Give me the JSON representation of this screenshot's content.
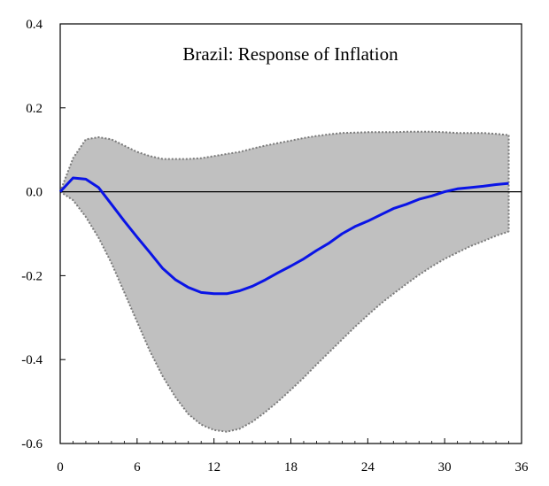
{
  "chart_data": {
    "type": "area",
    "title": "Brazil: Response of Inflation",
    "xlabel": "",
    "ylabel": "",
    "xlim": [
      0,
      36
    ],
    "ylim": [
      -0.6,
      0.4
    ],
    "x_ticks": [
      0,
      6,
      12,
      18,
      24,
      30,
      36
    ],
    "y_ticks": [
      0.4,
      0.2,
      0.0,
      -0.2,
      -0.4,
      -0.6
    ],
    "y_tick_labels": [
      "0.4",
      "0.2",
      "0.0",
      "-0.2",
      "-0.4",
      "-0.6"
    ],
    "grid": false,
    "zero_line": true,
    "colors": {
      "band_fill": "#c0c0c0",
      "band_edge": "#7a7a7a",
      "response": "#0a14e6",
      "axis": "#000000"
    },
    "x": [
      0,
      1,
      2,
      3,
      4,
      5,
      6,
      7,
      8,
      9,
      10,
      11,
      12,
      13,
      14,
      15,
      16,
      17,
      18,
      19,
      20,
      21,
      22,
      23,
      24,
      25,
      26,
      27,
      28,
      29,
      30,
      31,
      32,
      33,
      34,
      35
    ],
    "series": [
      {
        "role": "response",
        "values": [
          0.0,
          0.033,
          0.03,
          0.01,
          -0.03,
          -0.07,
          -0.108,
          -0.145,
          -0.183,
          -0.21,
          -0.228,
          -0.24,
          -0.243,
          -0.243,
          -0.236,
          -0.225,
          -0.21,
          -0.193,
          -0.177,
          -0.16,
          -0.14,
          -0.122,
          -0.1,
          -0.083,
          -0.07,
          -0.055,
          -0.04,
          -0.03,
          -0.018,
          -0.01,
          0.0,
          0.007,
          0.01,
          0.013,
          0.017,
          0.02
        ]
      },
      {
        "role": "upper_band",
        "values": [
          0.0,
          0.08,
          0.125,
          0.13,
          0.125,
          0.11,
          0.095,
          0.085,
          0.078,
          0.078,
          0.078,
          0.08,
          0.085,
          0.09,
          0.095,
          0.103,
          0.11,
          0.116,
          0.122,
          0.128,
          0.133,
          0.137,
          0.14,
          0.141,
          0.142,
          0.142,
          0.142,
          0.143,
          0.143,
          0.143,
          0.142,
          0.14,
          0.14,
          0.14,
          0.138,
          0.135
        ]
      },
      {
        "role": "lower_band",
        "values": [
          0.0,
          -0.02,
          -0.06,
          -0.11,
          -0.17,
          -0.24,
          -0.31,
          -0.38,
          -0.44,
          -0.49,
          -0.53,
          -0.555,
          -0.568,
          -0.572,
          -0.565,
          -0.548,
          -0.525,
          -0.5,
          -0.472,
          -0.443,
          -0.412,
          -0.382,
          -0.352,
          -0.322,
          -0.294,
          -0.267,
          -0.243,
          -0.22,
          -0.198,
          -0.178,
          -0.16,
          -0.145,
          -0.13,
          -0.118,
          -0.105,
          -0.095
        ]
      }
    ]
  }
}
